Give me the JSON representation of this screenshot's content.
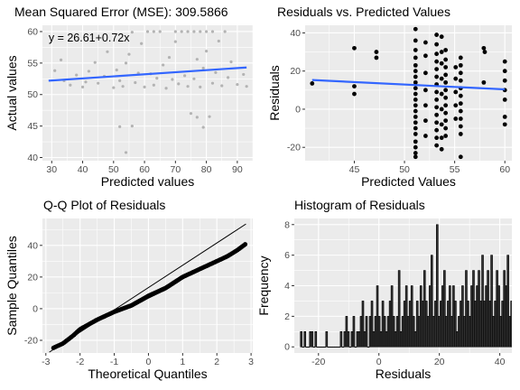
{
  "chart_data": [
    {
      "type": "scatter",
      "title": "Mean Squared Error (MSE): 309.5866",
      "xlabel": "Predicted values",
      "ylabel": "Actual values",
      "xlim": [
        27,
        95
      ],
      "ylim": [
        39.5,
        61
      ],
      "x_ticks": [
        30,
        40,
        50,
        60,
        70,
        80,
        90
      ],
      "y_ticks": [
        40,
        45,
        50,
        55,
        60
      ],
      "annotation": "y = 26.61+0.72x",
      "fit_line": {
        "x": [
          29,
          93
        ],
        "y": [
          52.2,
          54.3
        ]
      },
      "point_color": "#b3b3b3",
      "line_color": "#3366ff",
      "points": [
        [
          31,
          53.8
        ],
        [
          33,
          55.5
        ],
        [
          34,
          52.2
        ],
        [
          36,
          51.5
        ],
        [
          38,
          53.1
        ],
        [
          40,
          51.2
        ],
        [
          41,
          52.0
        ],
        [
          42,
          53.7
        ],
        [
          44,
          55.1
        ],
        [
          45,
          51.8
        ],
        [
          47,
          52.9
        ],
        [
          48,
          56.8
        ],
        [
          50,
          51.1
        ],
        [
          51,
          53.9
        ],
        [
          52,
          52.2
        ],
        [
          53,
          51.3
        ],
        [
          54,
          55.0
        ],
        [
          55,
          56.4
        ],
        [
          57,
          51.9
        ],
        [
          58,
          53.4
        ],
        [
          59,
          58.1
        ],
        [
          60,
          51.2
        ],
        [
          62,
          53.3
        ],
        [
          63,
          51.5
        ],
        [
          64,
          52.6
        ],
        [
          66,
          54.7
        ],
        [
          67,
          51.0
        ],
        [
          68,
          55.9
        ],
        [
          69,
          52.4
        ],
        [
          70,
          58.4
        ],
        [
          71,
          51.7
        ],
        [
          73,
          53.0
        ],
        [
          74,
          51.3
        ],
        [
          76,
          52.5
        ],
        [
          77,
          55.6
        ],
        [
          78,
          51.2
        ],
        [
          79,
          54.2
        ],
        [
          80,
          56.9
        ],
        [
          82,
          51.8
        ],
        [
          83,
          53.5
        ],
        [
          84,
          58.5
        ],
        [
          85,
          51.4
        ],
        [
          87,
          52.7
        ],
        [
          88,
          55.2
        ],
        [
          90,
          51.6
        ],
        [
          92,
          53.2
        ],
        [
          93,
          51.3
        ],
        [
          52,
          44.9
        ],
        [
          56,
          45.0
        ],
        [
          54,
          40.8
        ],
        [
          75,
          47.0
        ],
        [
          77,
          46.4
        ],
        [
          79,
          44.8
        ],
        [
          81,
          46.5
        ],
        [
          70,
          60.0
        ],
        [
          72,
          60.0
        ],
        [
          74,
          60.0
        ],
        [
          76,
          60.0
        ],
        [
          78,
          60.0
        ],
        [
          80,
          60.0
        ],
        [
          82,
          60.0
        ],
        [
          61,
          60.0
        ],
        [
          63,
          60.0
        ],
        [
          65,
          60.0
        ],
        [
          56,
          59.9
        ],
        [
          86,
          60.0
        ]
      ]
    },
    {
      "type": "scatter",
      "title": "Residuals vs. Predicted Values",
      "xlabel": "Predicted Values",
      "ylabel": "Residuals",
      "xlim": [
        40.1,
        60.7
      ],
      "ylim": [
        -27,
        44
      ],
      "x_ticks": [
        40,
        45,
        50,
        55,
        60
      ],
      "y_ticks": [
        -20,
        0,
        20,
        40
      ],
      "fit_line": {
        "x": [
          40.8,
          60
        ],
        "y": [
          15.3,
          10.4
        ]
      },
      "point_color": "#000000",
      "line_color": "#3366ff",
      "points": [
        [
          40.8,
          13.5
        ],
        [
          45,
          32
        ],
        [
          45,
          12
        ],
        [
          45,
          8
        ],
        [
          47.2,
          27
        ],
        [
          47.2,
          30
        ],
        [
          51.1,
          42
        ],
        [
          51.1,
          36
        ],
        [
          51.1,
          31
        ],
        [
          51.1,
          27
        ],
        [
          51.1,
          23
        ],
        [
          51.1,
          20
        ],
        [
          51.1,
          17
        ],
        [
          51.1,
          14
        ],
        [
          51.1,
          11
        ],
        [
          51.1,
          8
        ],
        [
          51.1,
          5
        ],
        [
          51.1,
          2
        ],
        [
          51.1,
          -1
        ],
        [
          51.1,
          -4
        ],
        [
          51.1,
          -7
        ],
        [
          51.1,
          -10
        ],
        [
          51.1,
          -13
        ],
        [
          51.1,
          -17
        ],
        [
          51.1,
          -20
        ],
        [
          51.1,
          -23
        ],
        [
          51.1,
          -25
        ],
        [
          52.1,
          35
        ],
        [
          52.1,
          28
        ],
        [
          52.1,
          19
        ],
        [
          52.1,
          10
        ],
        [
          52.1,
          2
        ],
        [
          52.1,
          -6
        ],
        [
          52.1,
          -14
        ],
        [
          53.2,
          39
        ],
        [
          53.2,
          34
        ],
        [
          53.2,
          29
        ],
        [
          53.2,
          25
        ],
        [
          53.2,
          21
        ],
        [
          53.2,
          17
        ],
        [
          53.2,
          13
        ],
        [
          53.2,
          9
        ],
        [
          53.2,
          5
        ],
        [
          53.2,
          1
        ],
        [
          53.2,
          -3
        ],
        [
          53.2,
          -7
        ],
        [
          53.2,
          -11
        ],
        [
          53.2,
          -15
        ],
        [
          53.2,
          -19
        ],
        [
          53.7,
          38
        ],
        [
          53.7,
          30
        ],
        [
          53.7,
          24
        ],
        [
          53.7,
          16
        ],
        [
          53.7,
          8
        ],
        [
          53.7,
          0
        ],
        [
          53.7,
          -8
        ],
        [
          53.7,
          -15
        ],
        [
          53.7,
          -21
        ],
        [
          54.1,
          31
        ],
        [
          54.1,
          26
        ],
        [
          54.1,
          22
        ],
        [
          54.1,
          18
        ],
        [
          54.1,
          14
        ],
        [
          54.1,
          10
        ],
        [
          54.1,
          6
        ],
        [
          54.1,
          2
        ],
        [
          54.1,
          -2
        ],
        [
          54.1,
          -6
        ],
        [
          54.1,
          -10
        ],
        [
          54.1,
          -14
        ],
        [
          55.1,
          22
        ],
        [
          55.1,
          16
        ],
        [
          55.1,
          9
        ],
        [
          55.1,
          2
        ],
        [
          55.1,
          -5
        ],
        [
          55.6,
          27
        ],
        [
          55.6,
          23
        ],
        [
          55.6,
          19
        ],
        [
          55.6,
          15
        ],
        [
          55.6,
          11
        ],
        [
          55.6,
          7
        ],
        [
          55.6,
          3
        ],
        [
          55.6,
          -1
        ],
        [
          55.6,
          -5
        ],
        [
          55.6,
          -9
        ],
        [
          55.6,
          -13
        ],
        [
          55.6,
          -25
        ],
        [
          57.9,
          32
        ],
        [
          57.9,
          14
        ],
        [
          58,
          30
        ],
        [
          60,
          25
        ],
        [
          60,
          20
        ],
        [
          60,
          15
        ],
        [
          60,
          10
        ],
        [
          60,
          5
        ],
        [
          60,
          -4
        ],
        [
          60,
          -8
        ]
      ]
    },
    {
      "type": "scatter",
      "title": "Q-Q Plot of Residuals",
      "xlabel": "Theoretical Quantiles",
      "ylabel": "Sample Quantiles",
      "xlim": [
        -3.1,
        3.05
      ],
      "ylim": [
        -28,
        57
      ],
      "x_ticks": [
        -3,
        -2,
        -1,
        0,
        1,
        2,
        3
      ],
      "y_ticks": [
        -20,
        0,
        20,
        40
      ],
      "ref_line": {
        "x": [
          -2.9,
          2.85
        ],
        "y": [
          -27.5,
          53.5
        ]
      },
      "point_color": "#000000",
      "line_color": "#000000",
      "curve": [
        [
          -2.8,
          -25
        ],
        [
          -2.5,
          -22
        ],
        [
          -2.2,
          -17
        ],
        [
          -2,
          -13
        ],
        [
          -1.5,
          -7
        ],
        [
          -1,
          -2
        ],
        [
          -0.5,
          2
        ],
        [
          0,
          8
        ],
        [
          0.5,
          13
        ],
        [
          1,
          20
        ],
        [
          1.5,
          25
        ],
        [
          2,
          30
        ],
        [
          2.3,
          33
        ],
        [
          2.6,
          37
        ],
        [
          2.85,
          41
        ]
      ],
      "n_points": 200
    },
    {
      "type": "bar",
      "title": "Histogram of Residuals",
      "xlabel": "Residuals",
      "ylabel": "Frequency",
      "xlim": [
        -28,
        44
      ],
      "ylim": [
        -0.4,
        8.4
      ],
      "x_ticks": [
        -20,
        0,
        20,
        40
      ],
      "y_ticks": [
        0,
        2,
        4,
        6,
        8
      ],
      "bin_start": -26,
      "bin_width": 0.6,
      "bar_fill": "#333333",
      "bar_outline": "#000000",
      "values": [
        1,
        0,
        1,
        0,
        0,
        1,
        1,
        0,
        1,
        0,
        0,
        0,
        0,
        0,
        1,
        0,
        0,
        0,
        0,
        0,
        0,
        0,
        1,
        0,
        1,
        2,
        1,
        0,
        1,
        2,
        0,
        1,
        1,
        2,
        3,
        1,
        2,
        0,
        2,
        3,
        1,
        2,
        4,
        2,
        1,
        3,
        2,
        1,
        2,
        3,
        4,
        2,
        1,
        2,
        5,
        1,
        2,
        3,
        4,
        2,
        3,
        4,
        2,
        1,
        3,
        2,
        4,
        3,
        5,
        3,
        2,
        4,
        6,
        2,
        3,
        8,
        2,
        3,
        4,
        5,
        2,
        3,
        4,
        2,
        4,
        3,
        1,
        2,
        3,
        4,
        2,
        5,
        3,
        2,
        4,
        5,
        3,
        4,
        5,
        3,
        6,
        3,
        4,
        5,
        3,
        6,
        2,
        3,
        5,
        4,
        2,
        3,
        5,
        4,
        6,
        2,
        3,
        4,
        2,
        1,
        3,
        2,
        5,
        1,
        2,
        1,
        0,
        1,
        0,
        0,
        1,
        0,
        1,
        0,
        0,
        1,
        0,
        0,
        1,
        0,
        1,
        0,
        1,
        0,
        1
      ]
    }
  ]
}
